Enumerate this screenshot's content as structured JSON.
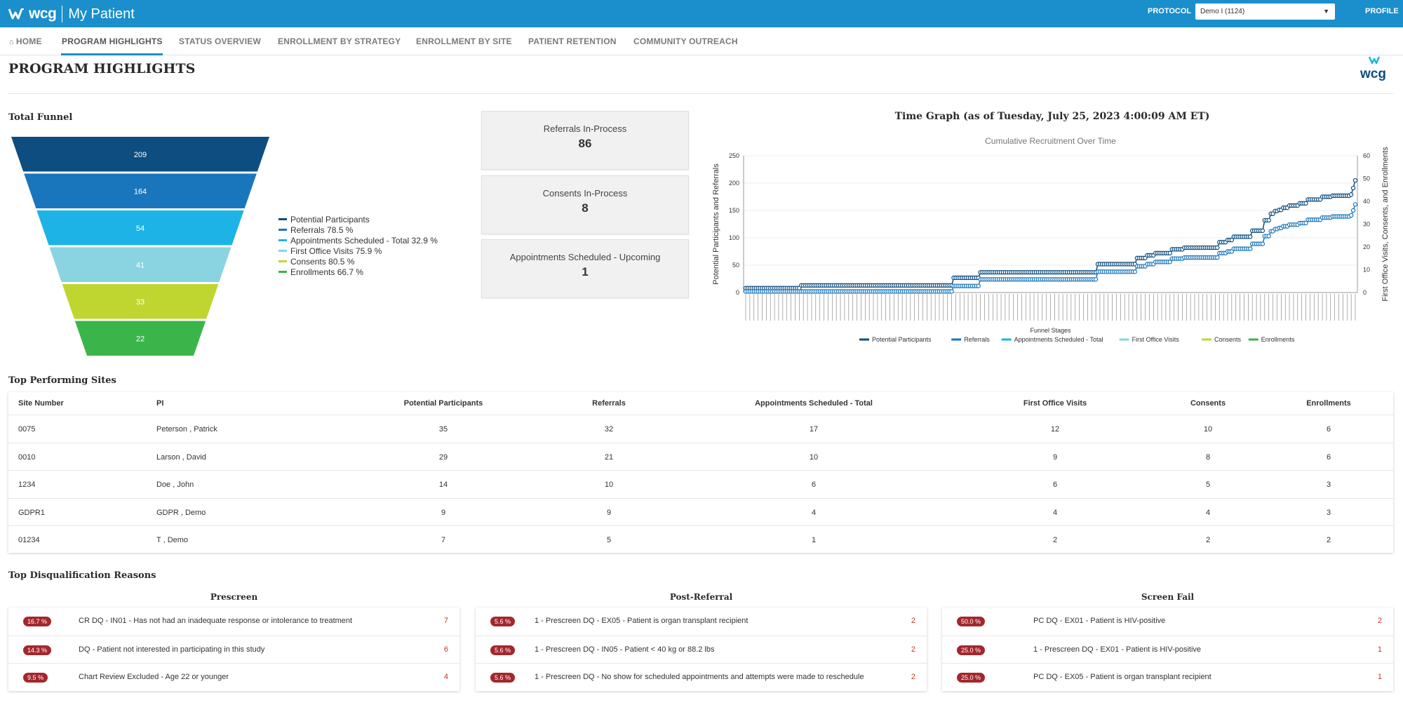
{
  "header": {
    "brand": "wcg",
    "app_name": "My Patient",
    "protocol_label": "PROTOCOL",
    "protocol_value": "Demo I (1124)",
    "profile_label": "PROFILE",
    "brand_color": "#1a8fcc"
  },
  "nav": {
    "items": [
      {
        "label": "HOME",
        "icon": "home-icon"
      },
      {
        "label": "PROGRAM HIGHLIGHTS"
      },
      {
        "label": "STATUS OVERVIEW"
      },
      {
        "label": "ENROLLMENT BY STRATEGY"
      },
      {
        "label": "ENROLLMENT BY SITE"
      },
      {
        "label": "PATIENT RETENTION"
      },
      {
        "label": "COMMUNITY OUTREACH"
      }
    ],
    "active": "PROGRAM HIGHLIGHTS"
  },
  "page": {
    "title": "PROGRAM HIGHLIGHTS",
    "corner_logo": "wcg"
  },
  "funnel": {
    "title": "Total Funnel",
    "stages": [
      {
        "value": "209",
        "color": "#0e4d7f"
      },
      {
        "value": "164",
        "color": "#1a76bc"
      },
      {
        "value": "54",
        "color": "#1eb3e6"
      },
      {
        "value": "41",
        "color": "#8ad4e2"
      },
      {
        "value": "33",
        "color": "#bfd630"
      },
      {
        "value": "22",
        "color": "#3ab54a"
      }
    ],
    "legend": [
      {
        "label": "Potential Participants",
        "color": "#0e4d7f"
      },
      {
        "label": "Referrals 78.5 %",
        "color": "#1a76bc"
      },
      {
        "label": "Appointments Scheduled - Total 32.9 %",
        "color": "#1eb3e6"
      },
      {
        "label": "First Office Visits 75.9 %",
        "color": "#8ad4e2"
      },
      {
        "label": "Consents 80.5 %",
        "color": "#bfd630"
      },
      {
        "label": "Enrollments 66.7 %",
        "color": "#3ab54a"
      }
    ]
  },
  "kpis": [
    {
      "label": "Referrals In-Process",
      "value": "86"
    },
    {
      "label": "Consents In-Process",
      "value": "8"
    },
    {
      "label": "Appointments Scheduled - Upcoming",
      "value": "1"
    }
  ],
  "chart_data": {
    "type": "line",
    "title": "Time Graph (as of Tuesday, July 25, 2023 4:00:09 AM ET)",
    "subtitle": "Cumulative Recruitment Over Time",
    "xlabel": "Funnel Stages",
    "ylabel": "Potential Participants and Referrals",
    "y2label": "First Office Visits, Consents, and Enrollments",
    "ylim": [
      0,
      250
    ],
    "y2lim": [
      0,
      60
    ],
    "yticks": [
      "0",
      "50",
      "100",
      "150",
      "200",
      "250"
    ],
    "y2ticks": [
      "0",
      "10",
      "20",
      "30",
      "40",
      "50",
      "60"
    ],
    "legend_position": "bottom",
    "series": [
      {
        "name": "Potential Participants",
        "color": "#0e4d7f",
        "values": [
          8,
          8,
          8,
          8,
          8,
          8,
          8,
          8,
          8,
          8,
          8,
          8,
          8,
          8,
          8,
          8,
          8,
          8,
          8,
          8,
          8,
          8,
          8,
          8,
          8,
          8,
          8,
          13,
          13,
          13,
          13,
          13,
          13,
          13,
          13,
          13,
          13,
          13,
          13,
          13,
          13,
          13,
          13,
          13,
          13,
          13,
          13,
          13,
          13,
          13,
          13,
          13,
          13,
          13,
          13,
          13,
          13,
          13,
          13,
          13,
          13,
          13,
          13,
          13,
          13,
          13,
          13,
          13,
          13,
          13,
          13,
          13,
          13,
          13,
          13,
          13,
          13,
          13,
          13,
          13,
          13,
          13,
          13,
          13,
          13,
          13,
          13,
          13,
          13,
          13,
          13,
          13,
          13,
          13,
          13,
          13,
          13,
          13,
          13,
          13,
          13,
          27,
          27,
          27,
          27,
          27,
          27,
          27,
          27,
          27,
          27,
          27,
          27,
          27,
          37,
          37,
          37,
          37,
          37,
          37,
          37,
          37,
          37,
          37,
          37,
          37,
          37,
          37,
          37,
          37,
          37,
          37,
          37,
          37,
          37,
          37,
          37,
          37,
          37,
          37,
          37,
          37,
          37,
          37,
          37,
          37,
          37,
          37,
          37,
          37,
          37,
          37,
          37,
          37,
          37,
          37,
          37,
          37,
          37,
          37,
          37,
          37,
          37,
          37,
          37,
          37,
          37,
          37,
          37,
          37,
          37,
          52,
          52,
          52,
          52,
          52,
          52,
          52,
          52,
          52,
          52,
          52,
          52,
          52,
          52,
          52,
          52,
          52,
          52,
          52,
          63,
          63,
          63,
          63,
          63,
          68,
          68,
          68,
          68,
          72,
          72,
          72,
          72,
          72,
          72,
          72,
          72,
          79,
          79,
          79,
          79,
          79,
          79,
          82,
          82,
          82,
          82,
          82,
          82,
          82,
          82,
          82,
          82,
          82,
          82,
          82,
          82,
          82,
          82,
          82,
          92,
          92,
          92,
          92,
          96,
          96,
          96,
          102,
          102,
          102,
          102,
          102,
          102,
          102,
          102,
          102,
          113,
          113,
          113,
          113,
          113,
          113,
          132,
          132,
          132,
          144,
          144,
          149,
          149,
          151,
          151,
          155,
          155,
          155,
          159,
          159,
          159,
          159,
          159,
          163,
          163,
          163,
          163,
          170,
          170,
          170,
          170,
          170,
          170,
          170,
          175,
          175,
          175,
          175,
          175,
          177,
          177,
          177,
          177,
          177,
          177,
          177,
          177,
          177,
          179,
          191,
          205
        ]
      },
      {
        "name": "Referrals",
        "color": "#1a76bc",
        "values": [
          2,
          2,
          2,
          2,
          2,
          2,
          2,
          2,
          2,
          2,
          2,
          2,
          2,
          2,
          2,
          2,
          2,
          2,
          2,
          2,
          2,
          2,
          2,
          2,
          2,
          2,
          2,
          2,
          2,
          2,
          2,
          2,
          2,
          2,
          2,
          2,
          2,
          2,
          2,
          2,
          2,
          2,
          2,
          2,
          2,
          2,
          2,
          2,
          2,
          2,
          2,
          2,
          2,
          2,
          2,
          2,
          2,
          2,
          2,
          2,
          2,
          2,
          2,
          2,
          2,
          2,
          2,
          2,
          2,
          2,
          2,
          2,
          2,
          2,
          2,
          2,
          2,
          2,
          2,
          2,
          2,
          2,
          2,
          2,
          2,
          2,
          2,
          2,
          2,
          2,
          2,
          2,
          2,
          2,
          2,
          2,
          2,
          2,
          2,
          2,
          2,
          12,
          12,
          12,
          12,
          12,
          12,
          12,
          12,
          12,
          12,
          12,
          12,
          12,
          24,
          24,
          24,
          24,
          24,
          24,
          24,
          24,
          24,
          24,
          24,
          24,
          24,
          24,
          24,
          24,
          24,
          24,
          24,
          24,
          24,
          24,
          24,
          24,
          24,
          24,
          24,
          24,
          24,
          24,
          24,
          24,
          24,
          24,
          24,
          24,
          24,
          24,
          24,
          24,
          24,
          24,
          24,
          24,
          24,
          24,
          24,
          24,
          24,
          24,
          24,
          24,
          24,
          24,
          24,
          24,
          24,
          38,
          38,
          38,
          38,
          38,
          38,
          38,
          38,
          38,
          38,
          38,
          38,
          38,
          38,
          38,
          38,
          38,
          38,
          38,
          48,
          48,
          48,
          48,
          48,
          52,
          52,
          52,
          52,
          56,
          56,
          56,
          56,
          56,
          56,
          56,
          56,
          62,
          62,
          62,
          62,
          62,
          62,
          64,
          64,
          64,
          64,
          64,
          64,
          64,
          64,
          64,
          64,
          64,
          64,
          64,
          64,
          64,
          64,
          64,
          72,
          72,
          72,
          72,
          75,
          75,
          75,
          80,
          80,
          80,
          80,
          80,
          80,
          80,
          80,
          80,
          89,
          89,
          89,
          89,
          89,
          89,
          103,
          103,
          103,
          112,
          112,
          116,
          116,
          118,
          118,
          121,
          121,
          121,
          124,
          124,
          124,
          124,
          124,
          127,
          127,
          127,
          127,
          133,
          133,
          133,
          133,
          133,
          133,
          133,
          137,
          137,
          137,
          137,
          137,
          139,
          139,
          139,
          139,
          139,
          139,
          139,
          139,
          139,
          141,
          150,
          161
        ]
      }
    ],
    "bar_series": [
      {
        "name": "Appointments Scheduled - Total",
        "color": "#1eb3e6",
        "axis": "right"
      },
      {
        "name": "First Office Visits",
        "color": "#8ad4e2",
        "axis": "right"
      },
      {
        "name": "Consents",
        "color": "#bfd630",
        "axis": "right"
      },
      {
        "name": "Enrollments",
        "color": "#3ab54a",
        "axis": "right"
      }
    ]
  },
  "sites": {
    "title": "Top Performing Sites",
    "columns": [
      "Site Number",
      "PI",
      "Potential Participants",
      "Referrals",
      "Appointments Scheduled - Total",
      "First Office Visits",
      "Consents",
      "Enrollments"
    ],
    "rows": [
      [
        "0075",
        "Peterson , Patrick",
        "35",
        "32",
        "17",
        "12",
        "10",
        "6"
      ],
      [
        "0010",
        "Larson , David",
        "29",
        "21",
        "10",
        "9",
        "8",
        "6"
      ],
      [
        "1234",
        "Doe , John",
        "14",
        "10",
        "6",
        "6",
        "5",
        "3"
      ],
      [
        "GDPR1",
        "GDPR , Demo",
        "9",
        "9",
        "4",
        "4",
        "4",
        "3"
      ],
      [
        "01234",
        "T , Demo",
        "7",
        "5",
        "1",
        "2",
        "2",
        "2"
      ]
    ]
  },
  "disqualifications": {
    "title": "Top Disqualification Reasons",
    "badge_color": "#a3272d",
    "columns": [
      {
        "title": "Prescreen",
        "items": [
          {
            "pct": "16.7 %",
            "reason": "CR DQ - IN01 - Has not had an inadequate response or intolerance to treatment",
            "count": "7"
          },
          {
            "pct": "14.3 %",
            "reason": "DQ - Patient not interested in participating in this study",
            "count": "6"
          },
          {
            "pct": "9.5 %",
            "reason": "Chart Review Excluded - Age 22 or younger",
            "count": "4"
          }
        ]
      },
      {
        "title": "Post-Referral",
        "items": [
          {
            "pct": "5.6 %",
            "reason": "1 - Prescreen DQ - EX05 - Patient is organ transplant recipient",
            "count": "2"
          },
          {
            "pct": "5.6 %",
            "reason": "1 - Prescreen DQ - IN05 - Patient < 40 kg or 88.2 lbs",
            "count": "2"
          },
          {
            "pct": "5.6 %",
            "reason": "1 - Prescreen DQ - No show for scheduled appointments and attempts were made to reschedule",
            "count": "2"
          }
        ]
      },
      {
        "title": "Screen Fail",
        "items": [
          {
            "pct": "50.0 %",
            "reason": "PC DQ - EX01 - Patient is HIV-positive",
            "count": "2"
          },
          {
            "pct": "25.0 %",
            "reason": "1 - Prescreen DQ - EX01 - Patient is HIV-positive",
            "count": "1"
          },
          {
            "pct": "25.0 %",
            "reason": "PC DQ - EX05 - Patient is organ transplant recipient",
            "count": "1"
          }
        ]
      }
    ]
  }
}
